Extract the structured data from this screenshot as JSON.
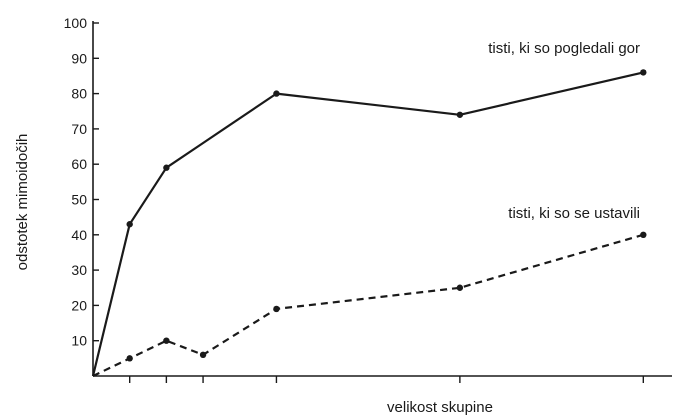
{
  "chart_data": {
    "type": "line",
    "title": "",
    "xlabel": "velikost skupine",
    "ylabel": "odstotek mimoidočih",
    "ylim": [
      0,
      100
    ],
    "yticks": [
      10,
      20,
      30,
      40,
      50,
      60,
      70,
      80,
      90,
      100
    ],
    "ytick_labels": [
      "10",
      "20",
      "30",
      "40",
      "50",
      "60",
      "70",
      "80",
      "90",
      "100"
    ],
    "x": [
      0,
      1,
      2,
      3,
      5,
      10,
      15
    ],
    "xlim": [
      0,
      16
    ],
    "grid": false,
    "series": [
      {
        "name": "tisti, ki so pogledali gor",
        "style": "solid",
        "color": "#1a1a1a",
        "values": [
          0,
          43,
          59,
          66,
          80,
          74,
          86
        ],
        "markers": [
          false,
          true,
          true,
          false,
          true,
          true,
          true
        ]
      },
      {
        "name": "tisti, ki so se ustavili",
        "style": "dashed",
        "color": "#1a1a1a",
        "values": [
          0,
          5,
          10,
          6,
          19,
          25,
          40
        ],
        "markers": [
          false,
          true,
          true,
          true,
          true,
          true,
          true
        ]
      }
    ]
  }
}
